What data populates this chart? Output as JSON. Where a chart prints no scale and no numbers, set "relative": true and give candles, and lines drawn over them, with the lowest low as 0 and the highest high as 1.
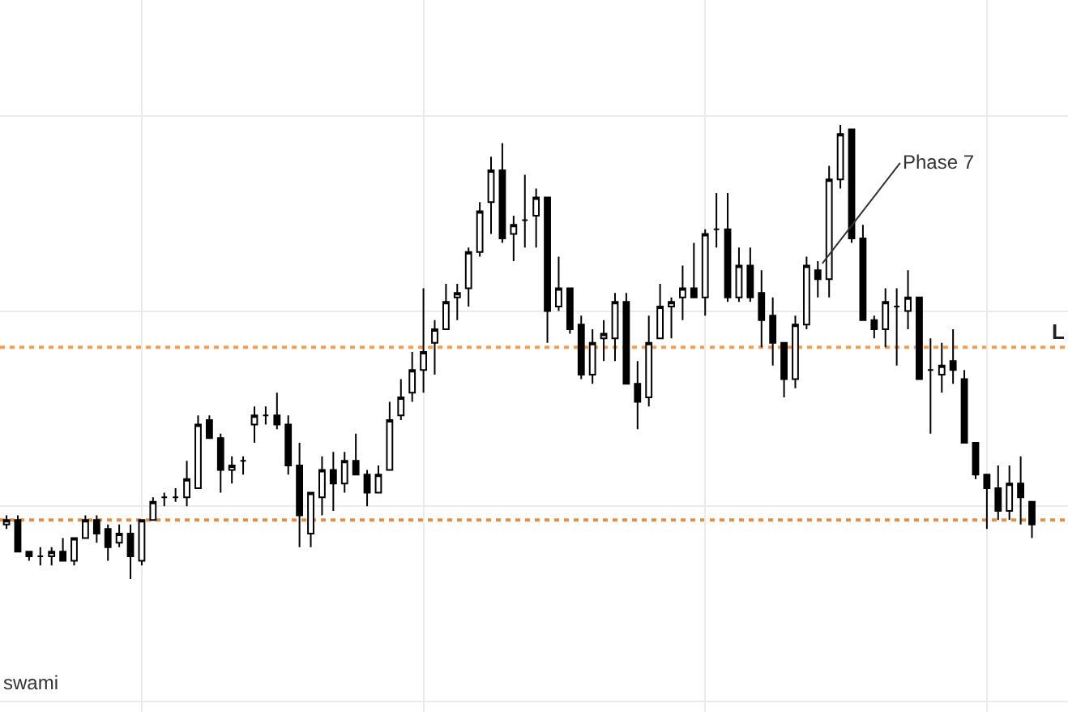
{
  "chart_data": {
    "type": "candlestick",
    "relative": true,
    "grid": true,
    "categories": [
      null,
      null,
      null,
      null,
      null,
      null,
      null,
      null,
      null,
      null,
      null,
      null,
      null,
      null,
      null,
      null,
      null,
      null,
      null,
      null,
      null,
      null,
      null,
      null,
      null,
      null,
      null,
      null,
      null,
      null,
      null,
      null,
      null,
      null,
      null,
      null,
      null,
      null,
      null,
      null,
      null,
      null,
      null,
      null,
      null,
      null,
      null,
      null,
      null,
      null,
      null,
      null,
      null,
      null,
      null,
      null,
      null,
      null,
      null,
      null,
      null,
      null,
      null,
      null,
      null,
      null,
      null,
      null,
      null,
      null,
      null,
      null,
      null,
      null,
      null,
      null,
      null,
      null,
      null,
      null,
      null,
      null,
      null,
      null,
      null,
      null,
      null,
      null,
      null,
      null,
      null,
      null
    ],
    "ohlc": [
      [
        0.12,
        0.14,
        0.11,
        0.13
      ],
      [
        0.13,
        0.14,
        0.06,
        0.06
      ],
      [
        0.06,
        0.06,
        0.04,
        0.05
      ],
      [
        0.05,
        0.07,
        0.03,
        0.05
      ],
      [
        0.05,
        0.07,
        0.03,
        0.06
      ],
      [
        0.06,
        0.09,
        0.04,
        0.04
      ],
      [
        0.04,
        0.09,
        0.03,
        0.09
      ],
      [
        0.09,
        0.14,
        0.09,
        0.13
      ],
      [
        0.13,
        0.14,
        0.08,
        0.1
      ],
      [
        0.11,
        0.12,
        0.04,
        0.07
      ],
      [
        0.08,
        0.12,
        0.07,
        0.1
      ],
      [
        0.1,
        0.12,
        0,
        0.05
      ],
      [
        0.04,
        0.13,
        0.03,
        0.13
      ],
      [
        0.13,
        0.18,
        0.13,
        0.17
      ],
      [
        0.18,
        0.19,
        0.16,
        0.18
      ],
      [
        0.18,
        0.2,
        0.17,
        0.18
      ],
      [
        0.18,
        0.26,
        0.16,
        0.22
      ],
      [
        0.2,
        0.36,
        0.2,
        0.34
      ],
      [
        0.35,
        0.36,
        0.31,
        0.31
      ],
      [
        0.31,
        0.32,
        0.19,
        0.24
      ],
      [
        0.24,
        0.27,
        0.21,
        0.25
      ],
      [
        0.26,
        0.27,
        0.23,
        0.26
      ],
      [
        0.34,
        0.38,
        0.3,
        0.36
      ],
      [
        0.36,
        0.38,
        0.34,
        0.36
      ],
      [
        0.36,
        0.41,
        0.33,
        0.34
      ],
      [
        0.34,
        0.36,
        0.23,
        0.25
      ],
      [
        0.25,
        0.3,
        0.07,
        0.14
      ],
      [
        0.1,
        0.19,
        0.07,
        0.19
      ],
      [
        0.18,
        0.27,
        0.14,
        0.24
      ],
      [
        0.24,
        0.28,
        0.15,
        0.21
      ],
      [
        0.21,
        0.28,
        0.19,
        0.26
      ],
      [
        0.26,
        0.32,
        0.23,
        0.23
      ],
      [
        0.23,
        0.24,
        0.16,
        0.19
      ],
      [
        0.19,
        0.25,
        0.19,
        0.23
      ],
      [
        0.24,
        0.39,
        0.24,
        0.35
      ],
      [
        0.36,
        0.44,
        0.35,
        0.4
      ],
      [
        0.41,
        0.5,
        0.39,
        0.46
      ],
      [
        0.46,
        0.64,
        0.41,
        0.5
      ],
      [
        0.52,
        0.57,
        0.45,
        0.55
      ],
      [
        0.55,
        0.65,
        0.55,
        0.61
      ],
      [
        0.62,
        0.65,
        0.57,
        0.63
      ],
      [
        0.64,
        0.73,
        0.6,
        0.72
      ],
      [
        0.72,
        0.83,
        0.71,
        0.81
      ],
      [
        0.83,
        0.93,
        0.76,
        0.9
      ],
      [
        0.9,
        0.96,
        0.74,
        0.75
      ],
      [
        0.76,
        0.8,
        0.7,
        0.78
      ],
      [
        0.79,
        0.89,
        0.73,
        0.79
      ],
      [
        0.8,
        0.86,
        0.73,
        0.84
      ],
      [
        0.84,
        0.84,
        0.52,
        0.59
      ],
      [
        0.6,
        0.71,
        0.59,
        0.64
      ],
      [
        0.64,
        0.64,
        0.54,
        0.55
      ],
      [
        0.56,
        0.58,
        0.44,
        0.45
      ],
      [
        0.45,
        0.55,
        0.43,
        0.52
      ],
      [
        0.53,
        0.57,
        0.48,
        0.54
      ],
      [
        0.53,
        0.63,
        0.48,
        0.61
      ],
      [
        0.61,
        0.63,
        0.43,
        0.43
      ],
      [
        0.43,
        0.48,
        0.33,
        0.39
      ],
      [
        0.4,
        0.58,
        0.38,
        0.52
      ],
      [
        0.53,
        0.65,
        0.53,
        0.6
      ],
      [
        0.6,
        0.62,
        0.53,
        0.61
      ],
      [
        0.62,
        0.69,
        0.57,
        0.64
      ],
      [
        0.64,
        0.74,
        0.62,
        0.62
      ],
      [
        0.62,
        0.77,
        0.58,
        0.76
      ],
      [
        0.77,
        0.85,
        0.73,
        0.77
      ],
      [
        0.77,
        0.85,
        0.61,
        0.62
      ],
      [
        0.62,
        0.73,
        0.61,
        0.69
      ],
      [
        0.69,
        0.73,
        0.61,
        0.62
      ],
      [
        0.63,
        0.68,
        0.51,
        0.57
      ],
      [
        0.58,
        0.62,
        0.47,
        0.52
      ],
      [
        0.52,
        0.52,
        0.4,
        0.44
      ],
      [
        0.44,
        0.58,
        0.42,
        0.56
      ],
      [
        0.56,
        0.71,
        0.55,
        0.69
      ],
      [
        0.68,
        0.7,
        0.62,
        0.66
      ],
      [
        0.66,
        0.91,
        0.62,
        0.88
      ],
      [
        0.88,
        1,
        0.86,
        0.98
      ],
      [
        0.99,
        0.99,
        0.74,
        0.75
      ],
      [
        0.75,
        0.78,
        0.57,
        0.57
      ],
      [
        0.57,
        0.58,
        0.53,
        0.55
      ],
      [
        0.55,
        0.64,
        0.51,
        0.61
      ],
      [
        0.6,
        0.64,
        0.47,
        0.6
      ],
      [
        0.59,
        0.68,
        0.55,
        0.62
      ],
      [
        0.62,
        0.62,
        0.44,
        0.44
      ],
      [
        0.46,
        0.53,
        0.32,
        0.46
      ],
      [
        0.45,
        0.52,
        0.41,
        0.47
      ],
      [
        0.48,
        0.55,
        0.43,
        0.46
      ],
      [
        0.44,
        0.46,
        0.3,
        0.3
      ],
      [
        0.3,
        0.3,
        0.22,
        0.23
      ],
      [
        0.23,
        0.23,
        0.11,
        0.2
      ],
      [
        0.2,
        0.25,
        0.13,
        0.15
      ],
      [
        0.15,
        0.25,
        0.13,
        0.21
      ],
      [
        0.21,
        0.27,
        0.12,
        0.18
      ],
      [
        0.17,
        0.17,
        0.09,
        0.12
      ]
    ],
    "ref_lines": [
      {
        "axis": "y",
        "value": 0.51,
        "label": "L",
        "color": "#f0a050",
        "line_style": "dotted"
      },
      {
        "axis": "y",
        "value": 0.13,
        "label": null,
        "color": "#e0904a",
        "line_style": "dotted"
      }
    ],
    "annotations": [
      "Phase 7",
      "swami"
    ]
  }
}
